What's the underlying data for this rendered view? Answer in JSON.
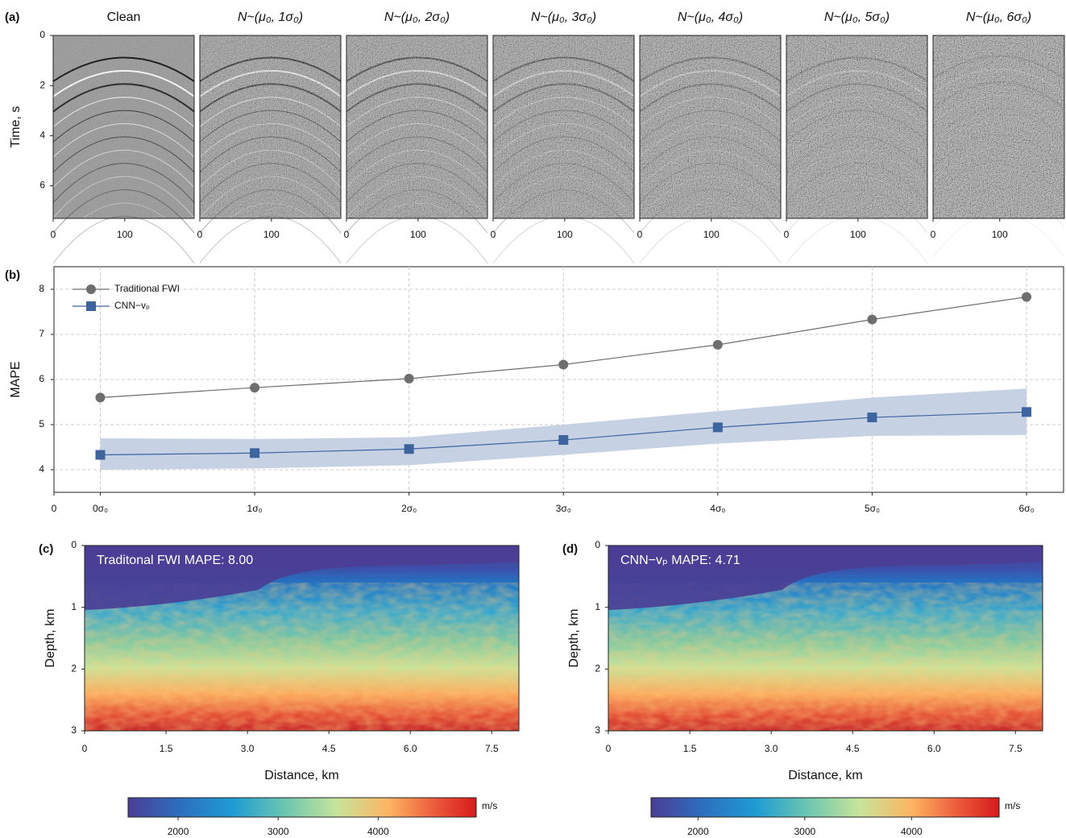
{
  "chart_data": [
    {
      "type": "image",
      "panel_label": "(a)",
      "title": "Clean",
      "ylabel": "Time, s",
      "xlim": [
        0,
        197
      ],
      "xticks": [
        0,
        100
      ],
      "ylim": [
        0,
        7.3
      ],
      "y_inverted": true,
      "yticks": [
        0,
        2,
        4,
        6
      ]
    },
    {
      "type": "image",
      "title": "N~(μ₀, 1σ₀)",
      "xlim": [
        0,
        197
      ],
      "xticks": [
        0,
        100
      ],
      "ylim": [
        0,
        7.3
      ],
      "y_inverted": true
    },
    {
      "type": "image",
      "title": "N~(μ₀, 2σ₀)",
      "xlim": [
        0,
        197
      ],
      "xticks": [
        0,
        100
      ],
      "ylim": [
        0,
        7.3
      ],
      "y_inverted": true
    },
    {
      "type": "image",
      "title": "N~(μ₀, 3σ₀)",
      "xlim": [
        0,
        197
      ],
      "xticks": [
        0,
        100
      ],
      "ylim": [
        0,
        7.3
      ],
      "y_inverted": true
    },
    {
      "type": "image",
      "title": "N~(μ₀, 4σ₀)",
      "xlim": [
        0,
        197
      ],
      "xticks": [
        0,
        100
      ],
      "ylim": [
        0,
        7.3
      ],
      "y_inverted": true
    },
    {
      "type": "image",
      "title": "N~(μ₀, 5σ₀)",
      "xlim": [
        0,
        197
      ],
      "xticks": [
        0,
        100
      ],
      "ylim": [
        0,
        7.3
      ],
      "y_inverted": true
    },
    {
      "type": "image",
      "title": "N~(μ₀, 6σ₀)",
      "xlim": [
        0,
        197
      ],
      "xticks": [
        0,
        100
      ],
      "ylim": [
        0,
        7.3
      ],
      "y_inverted": true
    },
    {
      "type": "line",
      "panel_label": "(b)",
      "ylabel": "MAPE",
      "x": [
        0,
        1,
        2,
        3,
        4,
        5,
        6
      ],
      "xlim": [
        -0.3,
        6.24
      ],
      "xticks": [
        {
          "value": -0.3,
          "label": "0"
        },
        {
          "value": 0,
          "label": "0σ₀"
        },
        {
          "value": 1,
          "label": "1σ₀"
        },
        {
          "value": 2,
          "label": "2σ₀"
        },
        {
          "value": 3,
          "label": "3σ₀"
        },
        {
          "value": 4,
          "label": "4σ₀"
        },
        {
          "value": 5,
          "label": "5σ₀"
        },
        {
          "value": 6,
          "label": "6σ₀"
        }
      ],
      "ylim": [
        3.5,
        8.5
      ],
      "yticks": [
        4,
        5,
        6,
        7,
        8
      ],
      "grid": true,
      "legend": "upper left",
      "series": [
        {
          "name": "Traditional FWI",
          "color": "#6e6e6e",
          "marker": "circle",
          "values": [
            5.6,
            5.82,
            6.02,
            6.33,
            6.77,
            7.33,
            7.83
          ]
        },
        {
          "name": "CNN−vₚ",
          "color": "#3e64a0",
          "marker": "square",
          "band_color": "#c6d2e3",
          "values": [
            4.33,
            4.37,
            4.46,
            4.66,
            4.94,
            5.16,
            5.28
          ],
          "lower": [
            4.0,
            4.03,
            4.1,
            4.33,
            4.58,
            4.75,
            4.77
          ],
          "upper": [
            4.7,
            4.68,
            4.72,
            5.0,
            5.3,
            5.6,
            5.8
          ]
        }
      ]
    },
    {
      "type": "heatmap",
      "panel_label": "(c)",
      "annotation": "Traditonal FWI MAPE: 8.00",
      "xlabel": "Distance, km",
      "ylabel": "Depth, km",
      "xlim": [
        0,
        8
      ],
      "xticks": [
        0,
        1.5,
        {
          "value": 3,
          "label": "3.0"
        },
        4.5,
        {
          "value": 6,
          "label": "6.0"
        },
        7.5
      ],
      "ylim": [
        0,
        3
      ],
      "y_inverted": true,
      "yticks": [
        0,
        1,
        2,
        3
      ],
      "colorbar": {
        "clim": [
          1500,
          4980
        ],
        "ticks": [
          2000,
          3000,
          4000
        ],
        "unit": "m/s"
      }
    },
    {
      "type": "heatmap",
      "panel_label": "(d)",
      "annotation": "CNN−vₚ MAPE: 4.71",
      "xlabel": "Distance, km",
      "ylabel": "Depth, km",
      "xlim": [
        0,
        8
      ],
      "xticks": [
        0,
        1.5,
        {
          "value": 3,
          "label": "3.0"
        },
        4.5,
        {
          "value": 6,
          "label": "6.0"
        },
        7.5
      ],
      "ylim": [
        0,
        3
      ],
      "y_inverted": true,
      "yticks": [
        0,
        1,
        2,
        3
      ],
      "colorbar": {
        "clim": [
          1560,
          4820
        ],
        "ticks": [
          2000,
          3000,
          4000
        ],
        "unit": "m/s"
      }
    }
  ]
}
